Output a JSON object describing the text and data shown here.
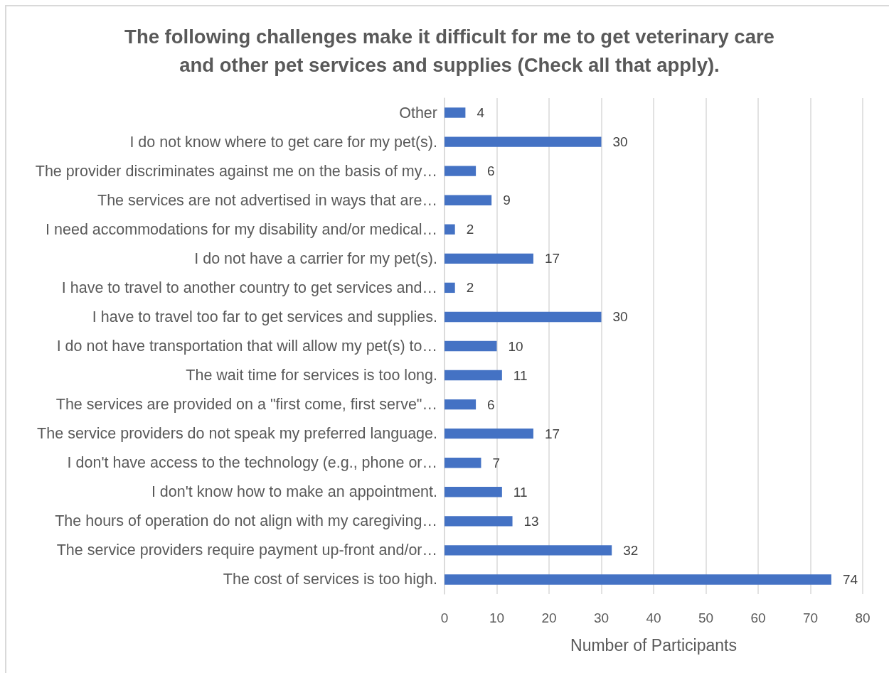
{
  "chart_data": {
    "type": "bar",
    "orientation": "horizontal",
    "title": "The following challenges make it difficult for me to get veterinary care\nand other pet services and supplies (Check all that apply).",
    "xlabel": "Number of Participants",
    "categories": [
      "Other",
      "I do not know where to get care for my pet(s).",
      "The provider discriminates against me on the basis of my…",
      "The services are not advertised in ways that are…",
      "I need accommodations for my disability and/or medical…",
      "I do not have a carrier for my pet(s).",
      "I have to travel to another country to get services and…",
      "I have to travel too far to get services and supplies.",
      "I do not have transportation that will allow my pet(s) to…",
      "The wait time for services is too long.",
      "The services are provided on a \"first come, first serve\"…",
      "The service providers do not speak my preferred language.",
      "I don't have access to the technology (e.g., phone or…",
      "I don't know how to make an appointment.",
      "The hours of operation do not align with my caregiving…",
      "The service providers require payment up-front and/or…",
      "The cost of services is too high."
    ],
    "values": [
      4,
      30,
      6,
      9,
      2,
      17,
      2,
      30,
      10,
      11,
      6,
      17,
      7,
      11,
      13,
      32,
      74
    ],
    "color": "#4472c4",
    "xlim": [
      0,
      80
    ],
    "xticks": [
      0,
      10,
      20,
      30,
      40,
      50,
      60,
      70,
      80
    ],
    "grid": "x",
    "data_labels": true
  }
}
